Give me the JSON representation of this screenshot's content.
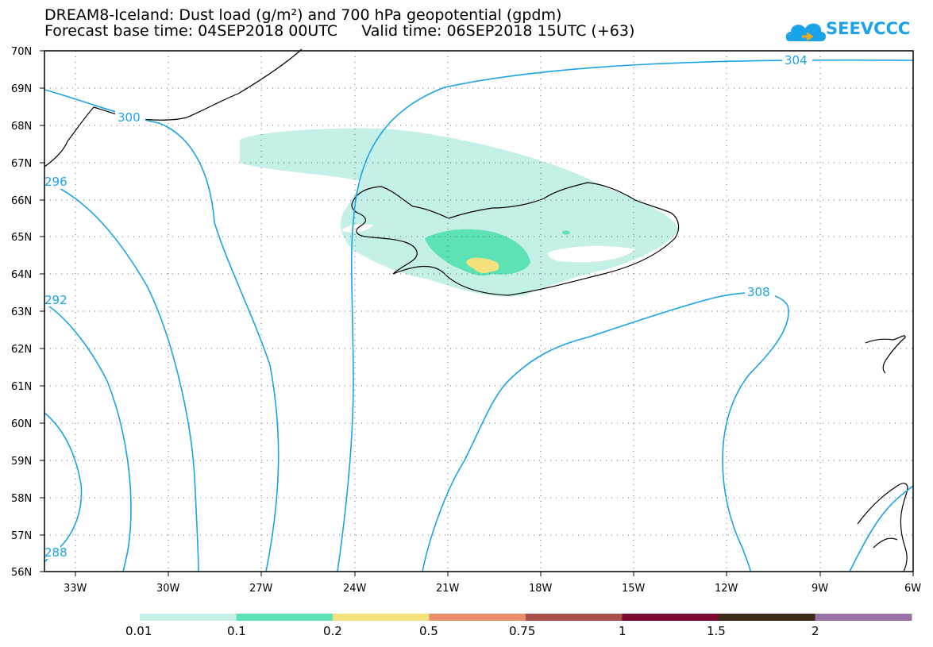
{
  "title_line1": "DREAM8-Iceland: Dust load (g/m²) and 700 hPa geopotential (gpdm)",
  "title_line2": "Forecast base time: 04SEP2018 00UTC     Valid time: 06SEP2018 15UTC (+63)",
  "logo_text": "SEEVCCC",
  "lat_labels": [
    "70N",
    "69N",
    "68N",
    "67N",
    "66N",
    "65N",
    "64N",
    "63N",
    "62N",
    "61N",
    "60N",
    "59N",
    "58N",
    "57N",
    "56N"
  ],
  "lon_labels": [
    "33W",
    "30W",
    "27W",
    "24W",
    "21W",
    "18W",
    "15W",
    "12W",
    "9W",
    "6W"
  ],
  "contour_labels": [
    "300",
    "304",
    "296",
    "292",
    "288",
    "308"
  ],
  "colorbar": {
    "colors": [
      "#c4f0e8",
      "#5de2b6",
      "#f5e27e",
      "#e98c6a",
      "#a8504a",
      "#7a0a2e",
      "#3a2a18",
      "#9a73a6"
    ],
    "labels": [
      "0.01",
      "0.1",
      "0.2",
      "0.5",
      "0.75",
      "1",
      "1.5",
      "2"
    ]
  },
  "colors": {
    "contour": "#1aa3e8",
    "coast": "#000000"
  }
}
